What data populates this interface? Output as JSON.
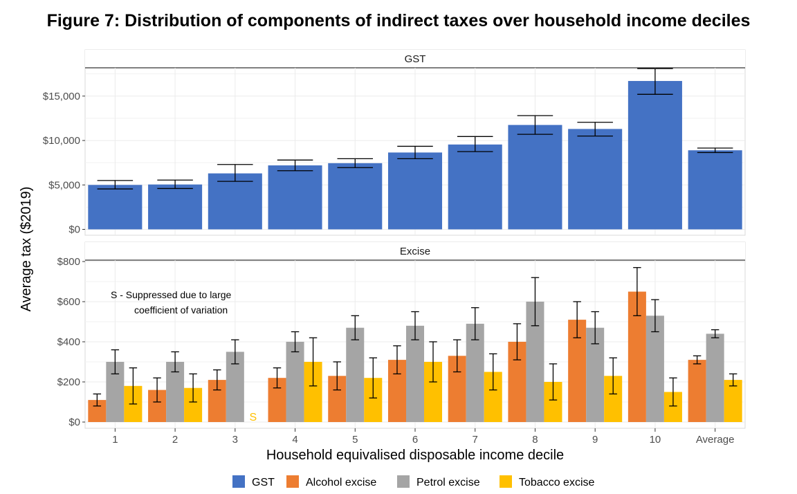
{
  "title": "Figure 7: Distribution of components of indirect taxes over household income deciles",
  "legend_position": "bottom",
  "chart_data": [
    {
      "type": "bar",
      "panel": "GST",
      "categories": [
        "1",
        "2",
        "3",
        "4",
        "5",
        "6",
        "7",
        "8",
        "9",
        "10",
        "Average"
      ],
      "ylim": [
        0,
        19000
      ],
      "yticks": [
        0,
        5000,
        10000,
        15000
      ],
      "ytick_labels": [
        "$0",
        "$5,000",
        "$10,000",
        "$15,000"
      ],
      "series": [
        {
          "name": "GST",
          "color": "#4472C4",
          "values": [
            5000,
            5050,
            6300,
            7200,
            7450,
            8650,
            9550,
            11750,
            11300,
            16700,
            8900
          ],
          "error_low": [
            4550,
            4600,
            5400,
            6600,
            6950,
            7950,
            8750,
            10700,
            10500,
            15200,
            8650
          ],
          "error_high": [
            5500,
            5550,
            7300,
            7800,
            7950,
            9350,
            10450,
            12800,
            12050,
            18100,
            9150
          ]
        }
      ]
    },
    {
      "type": "bar",
      "panel": "Excise",
      "categories": [
        "1",
        "2",
        "3",
        "4",
        "5",
        "6",
        "7",
        "8",
        "9",
        "10",
        "Average"
      ],
      "ylim": [
        0,
        800
      ],
      "yticks": [
        0,
        200,
        400,
        600,
        800
      ],
      "ytick_labels": [
        "$0",
        "$200",
        "$400",
        "$600",
        "$800"
      ],
      "note": [
        "S - Suppressed due to large",
        "coefficient of variation"
      ],
      "suppressed_marker": {
        "series": "Tobacco excise",
        "category": "3",
        "label": "S"
      },
      "series": [
        {
          "name": "Alcohol excise",
          "color": "#ED7D31",
          "values": [
            110,
            160,
            210,
            220,
            230,
            310,
            330,
            400,
            510,
            650,
            310
          ],
          "error_low": [
            80,
            100,
            160,
            170,
            160,
            240,
            250,
            310,
            420,
            530,
            290
          ],
          "error_high": [
            140,
            220,
            260,
            270,
            300,
            380,
            410,
            490,
            600,
            770,
            330
          ]
        },
        {
          "name": "Petrol excise",
          "color": "#A5A5A5",
          "values": [
            300,
            300,
            350,
            400,
            470,
            480,
            490,
            600,
            470,
            530,
            440
          ],
          "error_low": [
            240,
            250,
            290,
            350,
            410,
            410,
            410,
            480,
            390,
            450,
            420
          ],
          "error_high": [
            360,
            350,
            410,
            450,
            530,
            550,
            570,
            720,
            550,
            610,
            460
          ]
        },
        {
          "name": "Tobacco excise",
          "color": "#FFC000",
          "values": [
            180,
            170,
            null,
            300,
            220,
            300,
            250,
            200,
            230,
            150,
            210
          ],
          "error_low": [
            90,
            100,
            null,
            180,
            120,
            200,
            160,
            110,
            140,
            80,
            180
          ],
          "error_high": [
            270,
            240,
            null,
            420,
            320,
            400,
            340,
            290,
            320,
            220,
            240
          ]
        }
      ]
    }
  ],
  "xlabel": "Household equivalised disposable income decile",
  "ylabel": "Average tax ($2019)",
  "legend": [
    {
      "label": "GST",
      "color": "#4472C4"
    },
    {
      "label": "Alcohol excise",
      "color": "#ED7D31"
    },
    {
      "label": "Petrol excise",
      "color": "#A5A5A5"
    },
    {
      "label": "Tobacco excise",
      "color": "#FFC000"
    }
  ]
}
